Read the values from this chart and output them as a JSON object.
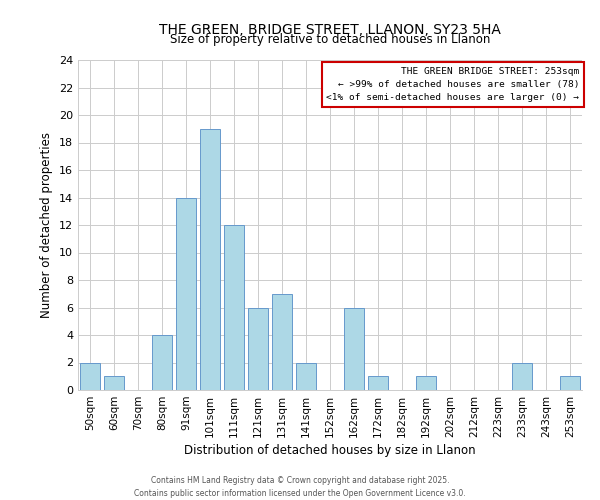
{
  "title": "THE GREEN, BRIDGE STREET, LLANON, SY23 5HA",
  "subtitle": "Size of property relative to detached houses in Llanon",
  "xlabel": "Distribution of detached houses by size in Llanon",
  "ylabel": "Number of detached properties",
  "bar_color": "#add8e6",
  "bar_edge_color": "#6699cc",
  "grid_color": "#cccccc",
  "categories": [
    "50sqm",
    "60sqm",
    "70sqm",
    "80sqm",
    "91sqm",
    "101sqm",
    "111sqm",
    "121sqm",
    "131sqm",
    "141sqm",
    "152sqm",
    "162sqm",
    "172sqm",
    "182sqm",
    "192sqm",
    "202sqm",
    "212sqm",
    "223sqm",
    "233sqm",
    "243sqm",
    "253sqm"
  ],
  "values": [
    2,
    1,
    0,
    4,
    14,
    19,
    12,
    6,
    7,
    2,
    0,
    6,
    1,
    0,
    1,
    0,
    0,
    0,
    2,
    0,
    1
  ],
  "ylim": [
    0,
    24
  ],
  "yticks": [
    0,
    2,
    4,
    6,
    8,
    10,
    12,
    14,
    16,
    18,
    20,
    22,
    24
  ],
  "annotation_title": "THE GREEN BRIDGE STREET: 253sqm",
  "annotation_line1": "← >99% of detached houses are smaller (78)",
  "annotation_line2": "<1% of semi-detached houses are larger (0) →",
  "annotation_box_color": "#cc0000",
  "footer_line1": "Contains HM Land Registry data © Crown copyright and database right 2025.",
  "footer_line2": "Contains public sector information licensed under the Open Government Licence v3.0.",
  "background_color": "#ffffff"
}
